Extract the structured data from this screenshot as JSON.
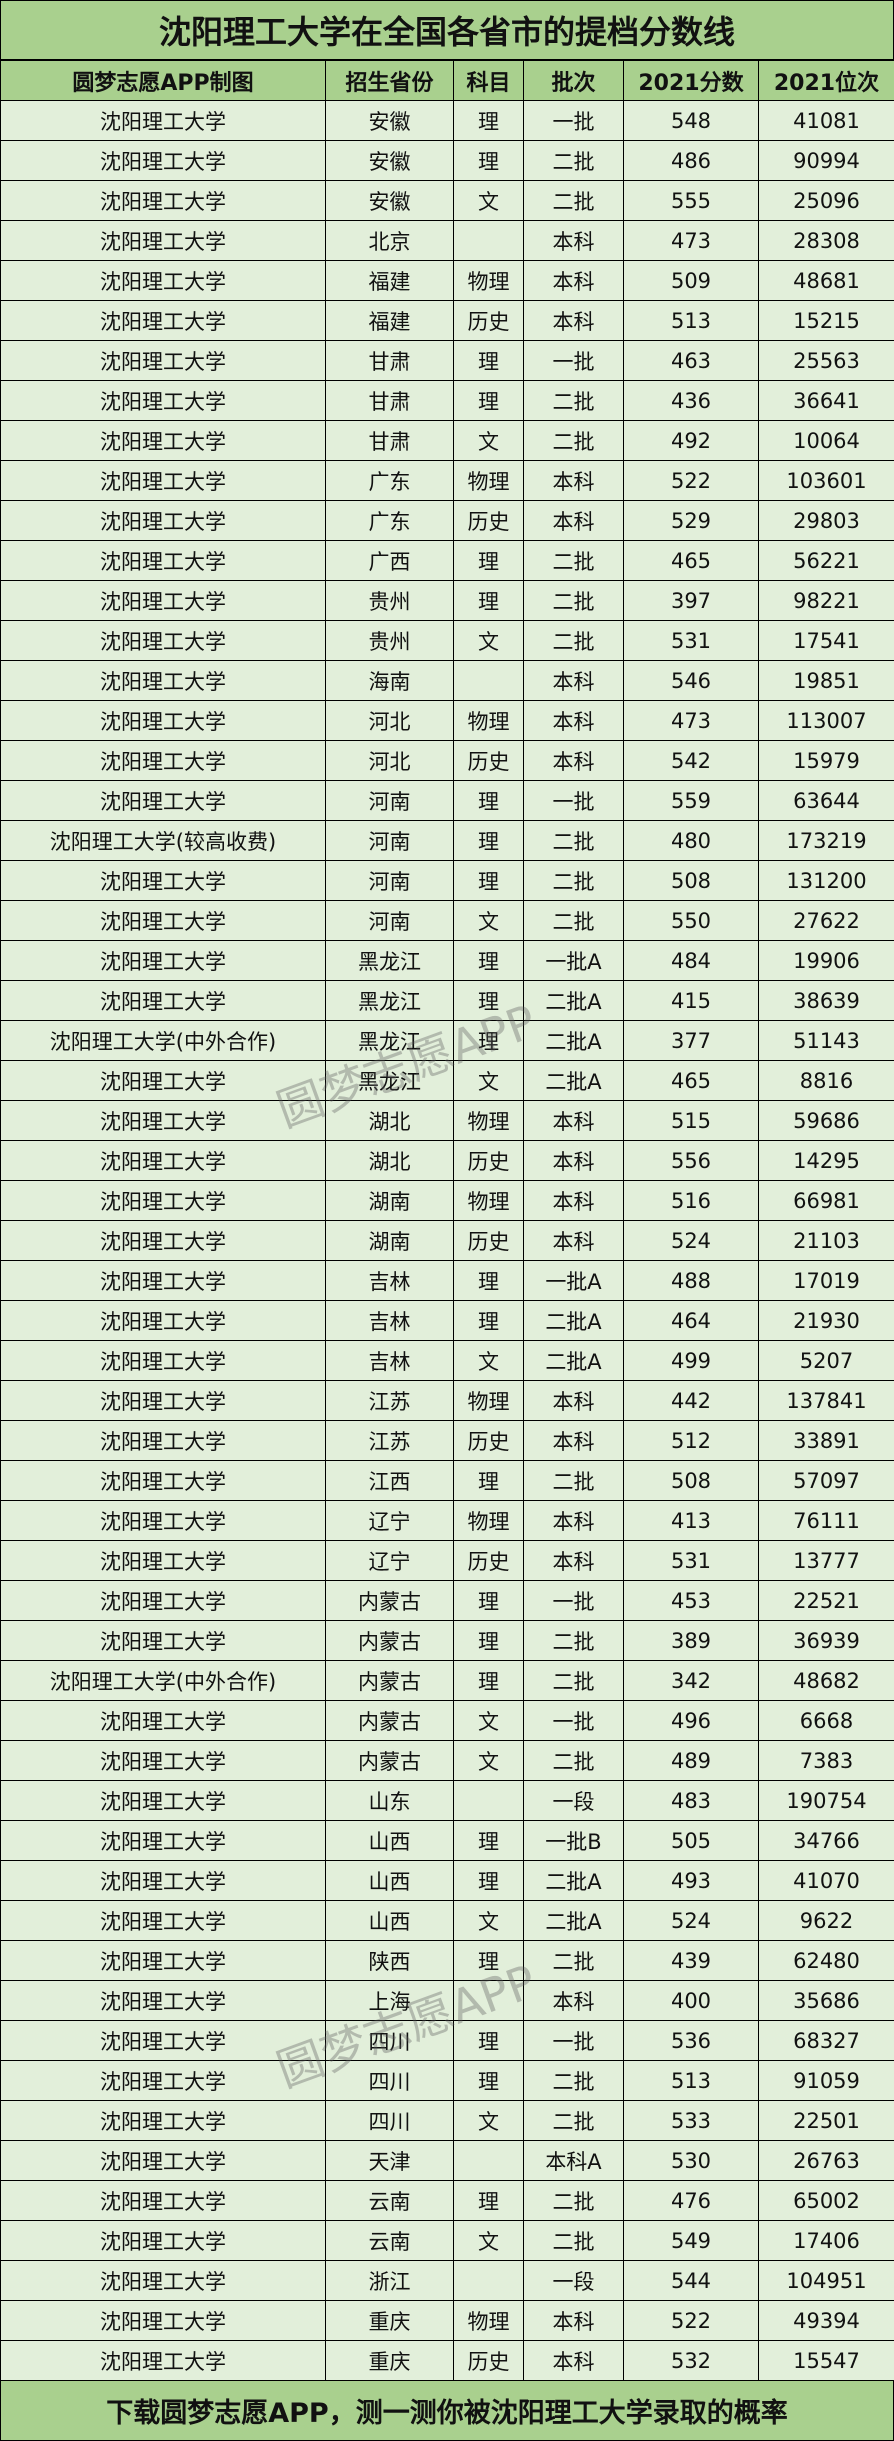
{
  "title": "沈阳理工大学在全国各省市的提档分数线",
  "headers": [
    "圆梦志愿APP制图",
    "招生省份",
    "科目",
    "批次",
    "2021分数",
    "2021位次"
  ],
  "rows": [
    [
      "沈阳理工大学",
      "安徽",
      "理",
      "一批",
      "548",
      "41081"
    ],
    [
      "沈阳理工大学",
      "安徽",
      "理",
      "二批",
      "486",
      "90994"
    ],
    [
      "沈阳理工大学",
      "安徽",
      "文",
      "二批",
      "555",
      "25096"
    ],
    [
      "沈阳理工大学",
      "北京",
      "",
      "本科",
      "473",
      "28308"
    ],
    [
      "沈阳理工大学",
      "福建",
      "物理",
      "本科",
      "509",
      "48681"
    ],
    [
      "沈阳理工大学",
      "福建",
      "历史",
      "本科",
      "513",
      "15215"
    ],
    [
      "沈阳理工大学",
      "甘肃",
      "理",
      "一批",
      "463",
      "25563"
    ],
    [
      "沈阳理工大学",
      "甘肃",
      "理",
      "二批",
      "436",
      "36641"
    ],
    [
      "沈阳理工大学",
      "甘肃",
      "文",
      "二批",
      "492",
      "10064"
    ],
    [
      "沈阳理工大学",
      "广东",
      "物理",
      "本科",
      "522",
      "103601"
    ],
    [
      "沈阳理工大学",
      "广东",
      "历史",
      "本科",
      "529",
      "29803"
    ],
    [
      "沈阳理工大学",
      "广西",
      "理",
      "二批",
      "465",
      "56221"
    ],
    [
      "沈阳理工大学",
      "贵州",
      "理",
      "二批",
      "397",
      "98221"
    ],
    [
      "沈阳理工大学",
      "贵州",
      "文",
      "二批",
      "531",
      "17541"
    ],
    [
      "沈阳理工大学",
      "海南",
      "",
      "本科",
      "546",
      "19851"
    ],
    [
      "沈阳理工大学",
      "河北",
      "物理",
      "本科",
      "473",
      "113007"
    ],
    [
      "沈阳理工大学",
      "河北",
      "历史",
      "本科",
      "542",
      "15979"
    ],
    [
      "沈阳理工大学",
      "河南",
      "理",
      "一批",
      "559",
      "63644"
    ],
    [
      "沈阳理工大学(较高收费)",
      "河南",
      "理",
      "二批",
      "480",
      "173219"
    ],
    [
      "沈阳理工大学",
      "河南",
      "理",
      "二批",
      "508",
      "131200"
    ],
    [
      "沈阳理工大学",
      "河南",
      "文",
      "二批",
      "550",
      "27622"
    ],
    [
      "沈阳理工大学",
      "黑龙江",
      "理",
      "一批A",
      "484",
      "19906"
    ],
    [
      "沈阳理工大学",
      "黑龙江",
      "理",
      "二批A",
      "415",
      "38639"
    ],
    [
      "沈阳理工大学(中外合作)",
      "黑龙江",
      "理",
      "二批A",
      "377",
      "51143"
    ],
    [
      "沈阳理工大学",
      "黑龙江",
      "文",
      "二批A",
      "465",
      "8816"
    ],
    [
      "沈阳理工大学",
      "湖北",
      "物理",
      "本科",
      "515",
      "59686"
    ],
    [
      "沈阳理工大学",
      "湖北",
      "历史",
      "本科",
      "556",
      "14295"
    ],
    [
      "沈阳理工大学",
      "湖南",
      "物理",
      "本科",
      "516",
      "66981"
    ],
    [
      "沈阳理工大学",
      "湖南",
      "历史",
      "本科",
      "524",
      "21103"
    ],
    [
      "沈阳理工大学",
      "吉林",
      "理",
      "一批A",
      "488",
      "17019"
    ],
    [
      "沈阳理工大学",
      "吉林",
      "理",
      "二批A",
      "464",
      "21930"
    ],
    [
      "沈阳理工大学",
      "吉林",
      "文",
      "二批A",
      "499",
      "5207"
    ],
    [
      "沈阳理工大学",
      "江苏",
      "物理",
      "本科",
      "442",
      "137841"
    ],
    [
      "沈阳理工大学",
      "江苏",
      "历史",
      "本科",
      "512",
      "33891"
    ],
    [
      "沈阳理工大学",
      "江西",
      "理",
      "二批",
      "508",
      "57097"
    ],
    [
      "沈阳理工大学",
      "辽宁",
      "物理",
      "本科",
      "413",
      "76111"
    ],
    [
      "沈阳理工大学",
      "辽宁",
      "历史",
      "本科",
      "531",
      "13777"
    ],
    [
      "沈阳理工大学",
      "内蒙古",
      "理",
      "一批",
      "453",
      "22521"
    ],
    [
      "沈阳理工大学",
      "内蒙古",
      "理",
      "二批",
      "389",
      "36939"
    ],
    [
      "沈阳理工大学(中外合作)",
      "内蒙古",
      "理",
      "二批",
      "342",
      "48682"
    ],
    [
      "沈阳理工大学",
      "内蒙古",
      "文",
      "一批",
      "496",
      "6668"
    ],
    [
      "沈阳理工大学",
      "内蒙古",
      "文",
      "二批",
      "489",
      "7383"
    ],
    [
      "沈阳理工大学",
      "山东",
      "",
      "一段",
      "483",
      "190754"
    ],
    [
      "沈阳理工大学",
      "山西",
      "理",
      "一批B",
      "505",
      "34766"
    ],
    [
      "沈阳理工大学",
      "山西",
      "理",
      "二批A",
      "493",
      "41070"
    ],
    [
      "沈阳理工大学",
      "山西",
      "文",
      "二批A",
      "524",
      "9622"
    ],
    [
      "沈阳理工大学",
      "陕西",
      "理",
      "二批",
      "439",
      "62480"
    ],
    [
      "沈阳理工大学",
      "上海",
      "",
      "本科",
      "400",
      "35686"
    ],
    [
      "沈阳理工大学",
      "四川",
      "理",
      "一批",
      "536",
      "68327"
    ],
    [
      "沈阳理工大学",
      "四川",
      "理",
      "二批",
      "513",
      "91059"
    ],
    [
      "沈阳理工大学",
      "四川",
      "文",
      "二批",
      "533",
      "22501"
    ],
    [
      "沈阳理工大学",
      "天津",
      "",
      "本科A",
      "530",
      "26763"
    ],
    [
      "沈阳理工大学",
      "云南",
      "理",
      "二批",
      "476",
      "65002"
    ],
    [
      "沈阳理工大学",
      "云南",
      "文",
      "二批",
      "549",
      "17406"
    ],
    [
      "沈阳理工大学",
      "浙江",
      "",
      "一段",
      "544",
      "104951"
    ],
    [
      "沈阳理工大学",
      "重庆",
      "物理",
      "本科",
      "522",
      "49394"
    ],
    [
      "沈阳理工大学",
      "重庆",
      "历史",
      "本科",
      "532",
      "15547"
    ]
  ],
  "footer": "下载圆梦志愿APP，测一测你被沈阳理工大学录取的概率",
  "watermark": "圆梦志愿APP",
  "colors": {
    "header_bg": "#a9d08e",
    "row_bg": "#e2efda",
    "border": "#000000"
  }
}
